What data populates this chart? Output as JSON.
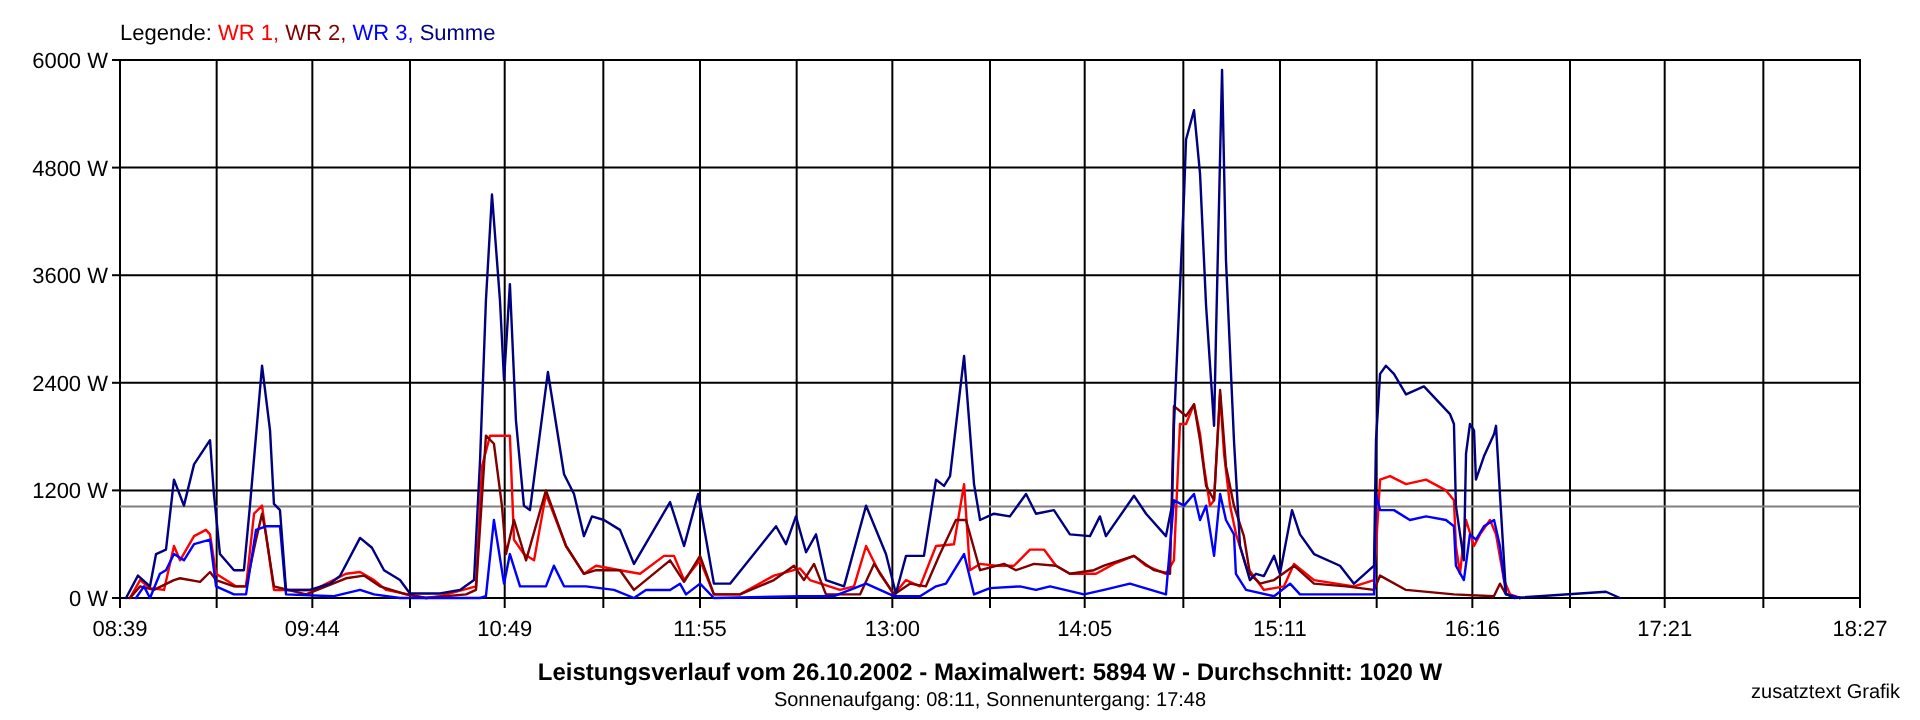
{
  "chart_data": {
    "type": "line",
    "title": "Leistungsverlauf vom 26.10.2002 - Maximalwert: 5894 W - Durchschnitt: 1020 W",
    "subtitle": "Sonnenaufgang: 08:11, Sonnenuntergang: 17:48",
    "annotations": [
      "zusatztext Grafik"
    ],
    "legend_title": "Legende:",
    "legend": "top left",
    "grid": true,
    "marker": "none",
    "line_style": "solid",
    "xlim": [
      8.65,
      18.45
    ],
    "xticks": [
      {
        "value": 8.65,
        "label": "08:39"
      },
      {
        "value": 9.1944,
        "label": null
      },
      {
        "value": 9.7333,
        "label": "09:44"
      },
      {
        "value": 10.2833,
        "label": null
      },
      {
        "value": 10.8167,
        "label": "10:49"
      },
      {
        "value": 11.3722,
        "label": null
      },
      {
        "value": 11.9167,
        "label": "11:55"
      },
      {
        "value": 12.4611,
        "label": null
      },
      {
        "value": 13.0,
        "label": "13:00"
      },
      {
        "value": 13.55,
        "label": null
      },
      {
        "value": 14.0833,
        "label": "14:05"
      },
      {
        "value": 14.6389,
        "label": null
      },
      {
        "value": 15.1833,
        "label": "15:11"
      },
      {
        "value": 15.7278,
        "label": null
      },
      {
        "value": 16.2667,
        "label": "16:16"
      },
      {
        "value": 16.8167,
        "label": null
      },
      {
        "value": 17.35,
        "label": "17:21"
      },
      {
        "value": 17.9056,
        "label": null
      },
      {
        "value": 18.45,
        "label": "18:27"
      }
    ],
    "ylim": [
      0,
      6000
    ],
    "yticks": [
      {
        "value": 0,
        "label": "0 W"
      },
      {
        "value": 1200,
        "label": "1200 W"
      },
      {
        "value": 2400,
        "label": "2400 W"
      },
      {
        "value": 3600,
        "label": "3600 W"
      },
      {
        "value": 4800,
        "label": "4800 W"
      },
      {
        "value": 6000,
        "label": "6000 W"
      }
    ],
    "ref_lines": [
      {
        "axis": "y",
        "value": 1020,
        "color": "#808080"
      }
    ],
    "series": [
      {
        "name": "WR 1,",
        "color": "#ff0000",
        "x": [
          8.706,
          8.763,
          8.819,
          8.898,
          8.954,
          8.988,
          9.067,
          9.134,
          9.157,
          9.191,
          9.303,
          9.36,
          9.405,
          9.45,
          9.472,
          9.517,
          9.743,
          9.923,
          10.002,
          10.081,
          10.148,
          10.373,
          10.452,
          10.655,
          10.689,
          10.734,
          10.846,
          10.869,
          10.925,
          10.982,
          11.049,
          11.162,
          11.263,
          11.331,
          11.466,
          11.579,
          11.714,
          11.77,
          11.827,
          11.917,
          11.995,
          12.142,
          12.333,
          12.48,
          12.536,
          12.705,
          12.784,
          12.852,
          12.93,
          13.009,
          13.077,
          13.156,
          13.246,
          13.347,
          13.404,
          13.437,
          13.494,
          13.584,
          13.685,
          13.775,
          13.854,
          13.922,
          14.0,
          14.147,
          14.248,
          14.361,
          14.429,
          14.541,
          14.586,
          14.62,
          14.654,
          14.699,
          14.733,
          14.755,
          14.789,
          14.812,
          14.846,
          14.868,
          14.902,
          14.936,
          14.992,
          15.093,
          15.206,
          15.262,
          15.375,
          15.6,
          15.713,
          15.747,
          15.803,
          15.893,
          16.006,
          16.118,
          16.163,
          16.174,
          16.197,
          16.231,
          16.276,
          16.31,
          16.366,
          16.4,
          16.445,
          16.479,
          16.535
        ],
        "values": [
          0,
          200,
          110,
          90,
          580,
          420,
          690,
          760,
          710,
          270,
          130,
          130,
          940,
          1030,
          710,
          90,
          90,
          270,
          290,
          200,
          90,
          0,
          20,
          130,
          1470,
          1810,
          1810,
          650,
          490,
          420,
          1160,
          580,
          270,
          360,
          310,
          270,
          470,
          470,
          200,
          420,
          40,
          40,
          250,
          330,
          200,
          90,
          130,
          580,
          270,
          40,
          200,
          130,
          580,
          600,
          1270,
          310,
          380,
          360,
          360,
          540,
          540,
          360,
          270,
          270,
          380,
          470,
          360,
          270,
          420,
          1940,
          1940,
          2160,
          1830,
          1470,
          1030,
          1090,
          2270,
          1610,
          1030,
          710,
          360,
          90,
          130,
          380,
          200,
          130,
          200,
          1320,
          1360,
          1270,
          1320,
          1200,
          1090,
          580,
          270,
          870,
          580,
          710,
          870,
          710,
          200,
          40,
          0
        ]
      },
      {
        "name": "WR 2,",
        "color": "#800000",
        "x": [
          8.706,
          8.763,
          8.841,
          8.954,
          8.988,
          9.101,
          9.157,
          9.191,
          9.292,
          9.36,
          9.416,
          9.45,
          9.472,
          9.517,
          9.698,
          9.923,
          10.024,
          10.114,
          10.261,
          10.373,
          10.599,
          10.655,
          10.711,
          10.756,
          10.801,
          10.824,
          10.869,
          10.937,
          11.049,
          11.162,
          11.263,
          11.331,
          11.466,
          11.545,
          11.748,
          11.827,
          11.917,
          11.995,
          12.142,
          12.333,
          12.446,
          12.502,
          12.559,
          12.626,
          12.818,
          12.897,
          13.009,
          13.099,
          13.189,
          13.268,
          13.358,
          13.415,
          13.494,
          13.629,
          13.696,
          13.798,
          13.922,
          14.0,
          14.135,
          14.192,
          14.361,
          14.474,
          14.564,
          14.586,
          14.654,
          14.699,
          14.733,
          14.767,
          14.812,
          14.846,
          14.879,
          14.924,
          14.98,
          15.014,
          15.071,
          15.15,
          15.262,
          15.375,
          15.555,
          15.713,
          15.747,
          15.893,
          16.163,
          16.388,
          16.422,
          16.456,
          16.535
        ],
        "values": [
          0,
          130,
          90,
          200,
          220,
          180,
          290,
          200,
          130,
          130,
          650,
          940,
          710,
          130,
          40,
          220,
          250,
          130,
          40,
          0,
          40,
          90,
          1810,
          1720,
          1030,
          490,
          870,
          420,
          1200,
          580,
          270,
          310,
          310,
          90,
          420,
          180,
          470,
          40,
          40,
          200,
          360,
          200,
          380,
          40,
          40,
          380,
          40,
          160,
          130,
          490,
          870,
          870,
          310,
          380,
          310,
          380,
          360,
          270,
          310,
          360,
          470,
          310,
          270,
          2140,
          2030,
          2160,
          1760,
          1250,
          1090,
          2320,
          1470,
          1030,
          690,
          270,
          160,
          200,
          360,
          160,
          130,
          90,
          250,
          90,
          40,
          20,
          160,
          40,
          0
        ]
      },
      {
        "name": "WR 3,",
        "color": "#0000ff",
        "x": [
          8.74,
          8.785,
          8.819,
          8.875,
          8.909,
          8.954,
          9.01,
          9.067,
          9.157,
          9.191,
          9.292,
          9.36,
          9.416,
          9.472,
          9.551,
          9.585,
          9.855,
          10.002,
          10.081,
          10.227,
          10.678,
          10.711,
          10.756,
          10.813,
          10.846,
          10.903,
          11.049,
          11.094,
          11.151,
          11.274,
          11.432,
          11.545,
          11.612,
          11.748,
          11.804,
          11.838,
          11.917,
          11.995,
          12.48,
          12.671,
          12.852,
          13.009,
          13.156,
          13.246,
          13.302,
          13.404,
          13.46,
          13.55,
          13.719,
          13.809,
          13.888,
          14.079,
          14.192,
          14.338,
          14.541,
          14.586,
          14.643,
          14.699,
          14.733,
          14.767,
          14.812,
          14.846,
          14.879,
          14.924,
          14.935,
          14.992,
          15.15,
          15.24,
          15.296,
          15.713,
          15.724,
          15.747,
          15.825,
          15.915,
          16.006,
          16.118,
          16.163,
          16.174,
          16.219,
          16.253,
          16.287,
          16.332,
          16.389,
          16.422,
          16.456,
          16.535
        ],
        "values": [
          0,
          130,
          0,
          270,
          310,
          490,
          420,
          600,
          650,
          130,
          40,
          40,
          760,
          800,
          800,
          40,
          20,
          90,
          40,
          0,
          0,
          20,
          870,
          160,
          490,
          130,
          130,
          360,
          130,
          130,
          90,
          0,
          90,
          90,
          160,
          40,
          160,
          0,
          20,
          20,
          160,
          20,
          20,
          130,
          160,
          490,
          40,
          110,
          130,
          90,
          130,
          40,
          90,
          160,
          40,
          1090,
          1030,
          1160,
          870,
          1030,
          470,
          1160,
          870,
          710,
          270,
          90,
          20,
          160,
          40,
          40,
          1160,
          980,
          980,
          870,
          910,
          870,
          800,
          360,
          200,
          710,
          650,
          800,
          870,
          580,
          40,
          0
        ]
      },
      {
        "name": "Summe",
        "color": "#000080",
        "x": [
          8.684,
          8.751,
          8.819,
          8.853,
          8.909,
          8.954,
          9.01,
          9.067,
          9.157,
          9.179,
          9.213,
          9.292,
          9.348,
          9.382,
          9.45,
          9.495,
          9.517,
          9.551,
          9.585,
          9.72,
          9.833,
          9.889,
          10.002,
          10.069,
          10.137,
          10.227,
          10.283,
          10.452,
          10.565,
          10.644,
          10.678,
          10.711,
          10.745,
          10.79,
          10.813,
          10.846,
          10.88,
          10.925,
          10.959,
          11.06,
          11.151,
          11.207,
          11.263,
          11.308,
          11.376,
          11.466,
          11.545,
          11.748,
          11.827,
          11.906,
          11.995,
          12.086,
          12.345,
          12.401,
          12.457,
          12.514,
          12.57,
          12.626,
          12.728,
          12.852,
          12.964,
          13.02,
          13.077,
          13.178,
          13.246,
          13.291,
          13.325,
          13.404,
          13.46,
          13.494,
          13.572,
          13.662,
          13.753,
          13.809,
          13.91,
          14.0,
          14.113,
          14.169,
          14.203,
          14.361,
          14.429,
          14.541,
          14.575,
          14.586,
          14.643,
          14.654,
          14.699,
          14.733,
          14.767,
          14.812,
          14.823,
          14.857,
          14.879,
          14.924,
          14.958,
          15.014,
          15.048,
          15.093,
          15.15,
          15.183,
          15.251,
          15.296,
          15.375,
          15.521,
          15.6,
          15.713,
          15.724,
          15.747,
          15.78,
          15.825,
          15.893,
          15.994,
          16.141,
          16.163,
          16.174,
          16.219,
          16.231,
          16.253,
          16.276,
          16.287,
          16.332,
          16.389,
          16.4,
          16.422,
          16.456,
          16.501,
          17.019,
          17.098
        ],
        "values": [
          0,
          250,
          130,
          490,
          540,
          1320,
          1030,
          1490,
          1760,
          1160,
          490,
          310,
          310,
          1030,
          2590,
          1870,
          1050,
          980,
          90,
          90,
          160,
          245,
          670,
          560,
          310,
          200,
          50,
          50,
          90,
          200,
          1540,
          3320,
          4500,
          3320,
          2430,
          3500,
          1980,
          1030,
          980,
          2520,
          1380,
          1160,
          690,
          910,
          870,
          760,
          380,
          1070,
          580,
          1160,
          160,
          160,
          800,
          600,
          910,
          510,
          710,
          200,
          130,
          1030,
          490,
          50,
          470,
          470,
          1320,
          1250,
          1360,
          2700,
          1270,
          870,
          940,
          910,
          1160,
          940,
          980,
          710,
          690,
          910,
          690,
          1140,
          940,
          690,
          1030,
          1920,
          4500,
          5110,
          5440,
          4730,
          3260,
          1920,
          2940,
          5890,
          3770,
          1760,
          580,
          200,
          270,
          245,
          470,
          270,
          980,
          710,
          490,
          360,
          160,
          360,
          1760,
          2500,
          2590,
          2500,
          2270,
          2360,
          2050,
          1940,
          1030,
          420,
          1610,
          1940,
          1870,
          1320,
          1580,
          1830,
          1920,
          1160,
          50,
          0,
          70,
          0
        ]
      }
    ]
  }
}
